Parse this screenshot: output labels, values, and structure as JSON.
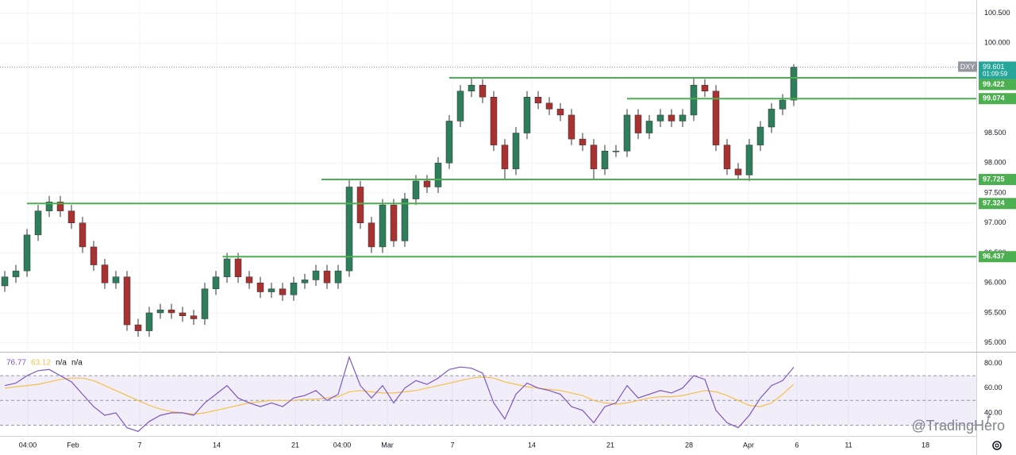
{
  "chart_data": [
    {
      "type": "candlestick",
      "symbol": "DXY",
      "xlim": [
        -0.43,
        87.43
      ],
      "xticks": [
        {
          "value": 2.07,
          "label": "04:00"
        },
        {
          "value": 6.14,
          "label": "Feb"
        },
        {
          "value": 12.14,
          "label": "7"
        },
        {
          "value": 19.07,
          "label": "14"
        },
        {
          "value": 26.14,
          "label": "21"
        },
        {
          "value": 30.36,
          "label": "04:00"
        },
        {
          "value": 34.43,
          "label": "Mar"
        },
        {
          "value": 40.29,
          "label": "7"
        },
        {
          "value": 47.43,
          "label": "14"
        },
        {
          "value": 54.5,
          "label": "21"
        },
        {
          "value": 61.57,
          "label": "28"
        },
        {
          "value": 66.93,
          "label": "Apr"
        },
        {
          "value": 71.29,
          "label": "6"
        },
        {
          "value": 75.93,
          "label": "11"
        },
        {
          "value": 82.86,
          "label": "18"
        }
      ],
      "ylim": [
        94.89,
        100.72
      ],
      "yticks": [
        {
          "value": 100.5,
          "label": "100.500"
        },
        {
          "value": 100,
          "label": "100.000"
        },
        {
          "value": 98.5,
          "label": "98.500"
        },
        {
          "value": 98,
          "label": "98.000"
        },
        {
          "value": 97.5,
          "label": "97.500"
        },
        {
          "value": 97,
          "label": "97.000"
        },
        {
          "value": 96.5,
          "label": "96.500"
        },
        {
          "value": 96,
          "label": "96.000"
        },
        {
          "value": 95.5,
          "label": "95.500"
        },
        {
          "value": 95,
          "label": "95.000"
        }
      ],
      "open": [
        95.95,
        96.1,
        96.2,
        96.8,
        97.2,
        97.35,
        97.2,
        97.0,
        96.6,
        96.3,
        96.0,
        96.1,
        95.3,
        95.2,
        95.5,
        95.55,
        95.5,
        95.45,
        95.4,
        95.9,
        96.1,
        96.4,
        96.1,
        96.0,
        95.85,
        95.9,
        95.8,
        96.0,
        96.05,
        96.2,
        96.0,
        96.2,
        97.6,
        97.0,
        96.6,
        97.3,
        96.7,
        97.4,
        97.7,
        97.6,
        98.0,
        98.7,
        99.2,
        99.3,
        99.1,
        98.3,
        97.9,
        98.5,
        99.1,
        99.0,
        98.9,
        98.8,
        98.4,
        98.3,
        97.9,
        98.2,
        98.2,
        98.8,
        98.5,
        98.7,
        98.8,
        98.7,
        98.8,
        99.3,
        99.2,
        98.3,
        97.9,
        97.8,
        98.3,
        98.6,
        98.9,
        99.05
      ],
      "high": [
        96.2,
        96.3,
        96.9,
        97.3,
        97.45,
        97.45,
        97.3,
        97.1,
        96.7,
        96.4,
        96.2,
        96.2,
        95.4,
        95.6,
        95.65,
        95.65,
        95.6,
        95.55,
        96.0,
        96.2,
        96.5,
        96.5,
        96.2,
        96.1,
        96.0,
        96.0,
        96.1,
        96.15,
        96.3,
        96.3,
        96.3,
        97.725,
        97.7,
        97.1,
        97.4,
        97.4,
        97.5,
        97.8,
        97.8,
        98.1,
        98.8,
        99.3,
        99.42,
        99.4,
        99.2,
        98.4,
        98.6,
        99.2,
        99.2,
        99.1,
        99.0,
        98.9,
        98.5,
        98.4,
        98.3,
        98.3,
        98.9,
        98.9,
        98.8,
        98.9,
        98.9,
        98.9,
        99.42,
        99.4,
        99.3,
        98.4,
        98.0,
        98.4,
        98.7,
        99.0,
        99.15,
        99.65
      ],
      "low": [
        95.85,
        96.0,
        96.1,
        96.7,
        97.1,
        97.1,
        96.9,
        96.5,
        96.2,
        95.9,
        95.9,
        95.2,
        95.1,
        95.1,
        95.4,
        95.4,
        95.35,
        95.3,
        95.3,
        95.8,
        96.0,
        96.0,
        95.9,
        95.75,
        95.75,
        95.7,
        95.7,
        95.9,
        95.95,
        95.9,
        95.9,
        96.1,
        96.9,
        96.5,
        96.5,
        96.6,
        96.6,
        97.3,
        97.5,
        97.5,
        97.9,
        98.6,
        99.1,
        99.0,
        98.2,
        97.725,
        97.8,
        98.4,
        98.9,
        98.8,
        98.7,
        98.3,
        98.2,
        97.725,
        97.8,
        98.1,
        98.1,
        98.4,
        98.4,
        98.6,
        98.6,
        98.6,
        98.7,
        99.1,
        98.2,
        97.8,
        97.725,
        97.7,
        98.2,
        98.5,
        98.8,
        98.95
      ],
      "close": [
        96.1,
        96.2,
        96.8,
        97.2,
        97.35,
        97.2,
        97.0,
        96.6,
        96.3,
        96.0,
        96.1,
        95.3,
        95.2,
        95.5,
        95.55,
        95.5,
        95.45,
        95.4,
        95.9,
        96.1,
        96.4,
        96.1,
        96.0,
        95.85,
        95.9,
        95.8,
        96.0,
        96.05,
        96.2,
        96.0,
        96.2,
        97.6,
        97.0,
        96.6,
        97.3,
        96.7,
        97.4,
        97.7,
        97.6,
        98.0,
        98.7,
        99.2,
        99.3,
        99.1,
        98.3,
        97.9,
        98.5,
        99.1,
        99.0,
        98.9,
        98.8,
        98.4,
        98.3,
        97.9,
        98.2,
        98.2,
        98.8,
        98.5,
        98.7,
        98.8,
        98.7,
        98.8,
        99.3,
        99.2,
        98.3,
        97.9,
        97.8,
        98.3,
        98.6,
        98.9,
        99.05,
        99.601
      ],
      "up_color": "#2e7d5b",
      "down_color": "#a83232",
      "levels": [
        {
          "value": 99.422,
          "start": 40
        },
        {
          "value": 99.074,
          "start": 56
        },
        {
          "value": 97.725,
          "start": 28.5
        },
        {
          "value": 97.324,
          "start": 2
        },
        {
          "value": 96.437,
          "start": 19.6
        }
      ],
      "level_color": "#4caf50",
      "countdown": "01:09:59",
      "grid": true
    },
    {
      "type": "line",
      "ylim": [
        22,
        88
      ],
      "yticks": [
        {
          "value": 80,
          "label": "80.00"
        },
        {
          "value": 60,
          "label": "60.00"
        },
        {
          "value": 40,
          "label": "40.00"
        }
      ],
      "bands": [
        70,
        50,
        30
      ],
      "series": [
        {
          "color": "#7e57c2",
          "values": [
            62,
            64,
            70,
            74,
            75,
            70,
            65,
            55,
            45,
            38,
            40,
            28,
            25,
            33,
            38,
            40,
            40,
            38,
            48,
            55,
            62,
            52,
            48,
            45,
            48,
            45,
            52,
            54,
            58,
            50,
            55,
            85,
            62,
            52,
            62,
            48,
            60,
            66,
            63,
            68,
            75,
            77,
            76,
            72,
            48,
            35,
            55,
            64,
            60,
            58,
            55,
            45,
            42,
            32,
            45,
            48,
            62,
            52,
            55,
            58,
            56,
            60,
            70,
            67,
            42,
            32,
            28,
            38,
            52,
            62,
            66,
            76.77
          ]
        },
        {
          "color": "#f5c04a",
          "values": [
            60,
            61,
            62,
            63,
            65,
            67,
            68,
            68,
            66,
            62,
            58,
            54,
            50,
            46,
            43,
            41,
            40,
            39,
            40,
            42,
            44,
            46,
            48,
            49,
            50,
            50,
            50,
            51,
            51,
            52,
            53,
            57,
            58,
            57,
            56,
            56,
            57,
            58,
            60,
            62,
            64,
            66,
            68,
            69,
            68,
            65,
            63,
            61,
            60,
            59,
            58,
            56,
            54,
            50,
            48,
            47,
            48,
            50,
            52,
            53,
            53,
            54,
            56,
            58,
            57,
            54,
            50,
            46,
            45,
            48,
            55,
            63.12
          ]
        }
      ],
      "legend_extra": [
        "n/a",
        "n/a"
      ]
    }
  ],
  "watermark": "@TradingHero"
}
